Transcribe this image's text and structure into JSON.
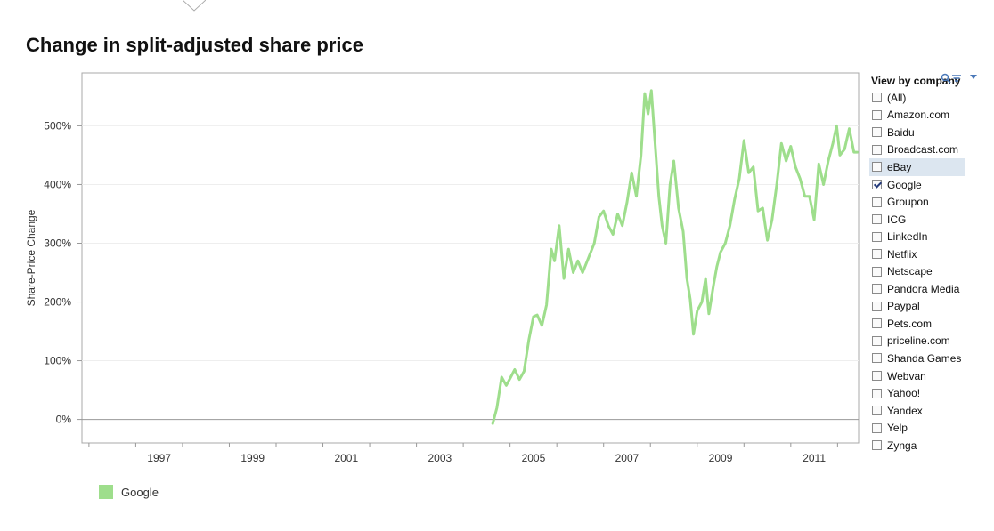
{
  "page": {
    "title": "Change in split-adjusted share price",
    "colors": {
      "series": "#9ede8c",
      "plot_border": "#a8a8a8",
      "gridline": "#eeeeee",
      "zero_line": "#999999",
      "accent": "#4a78b8"
    }
  },
  "filter": {
    "title": "View by company",
    "items": [
      {
        "label": "(All)",
        "checked": false
      },
      {
        "label": "Amazon.com",
        "checked": false
      },
      {
        "label": "Baidu",
        "checked": false
      },
      {
        "label": "Broadcast.com",
        "checked": false
      },
      {
        "label": "eBay",
        "checked": false
      },
      {
        "label": "Google",
        "checked": true
      },
      {
        "label": "Groupon",
        "checked": false
      },
      {
        "label": "ICG",
        "checked": false
      },
      {
        "label": "LinkedIn",
        "checked": false
      },
      {
        "label": "Netflix",
        "checked": false
      },
      {
        "label": "Netscape",
        "checked": false
      },
      {
        "label": "Pandora Media",
        "checked": false
      },
      {
        "label": "Paypal",
        "checked": false
      },
      {
        "label": "Pets.com",
        "checked": false
      },
      {
        "label": "priceline.com",
        "checked": false
      },
      {
        "label": "Shanda Games",
        "checked": false
      },
      {
        "label": "Webvan",
        "checked": false
      },
      {
        "label": "Yahoo!",
        "checked": false
      },
      {
        "label": "Yandex",
        "checked": false
      },
      {
        "label": "Yelp",
        "checked": false
      },
      {
        "label": "Zynga",
        "checked": false
      }
    ],
    "icons": [
      "search-icon",
      "filter-menu-icon",
      "dropdown-icon"
    ]
  },
  "chart_data": {
    "type": "line",
    "title": "Change in split-adjusted share price",
    "xlabel": "",
    "ylabel": "Share-Price Change",
    "xlim": [
      1995.85,
      2012.45
    ],
    "ylim": [
      -40,
      590
    ],
    "x_ticks": [
      "1997",
      "1999",
      "2001",
      "2003",
      "2005",
      "2007",
      "2009",
      "2011"
    ],
    "y_ticks": [
      "0%",
      "100%",
      "200%",
      "300%",
      "400%",
      "500%"
    ],
    "y_tick_values": [
      0,
      100,
      200,
      300,
      400,
      500
    ],
    "grid": true,
    "legend_position": "bottom-left",
    "series": [
      {
        "name": "Google",
        "color": "#9ede8c",
        "points": [
          [
            2004.63,
            -7
          ],
          [
            2004.72,
            20
          ],
          [
            2004.82,
            72
          ],
          [
            2004.92,
            58
          ],
          [
            2005.0,
            70
          ],
          [
            2005.1,
            85
          ],
          [
            2005.2,
            68
          ],
          [
            2005.3,
            82
          ],
          [
            2005.4,
            135
          ],
          [
            2005.5,
            175
          ],
          [
            2005.58,
            178
          ],
          [
            2005.68,
            160
          ],
          [
            2005.78,
            195
          ],
          [
            2005.88,
            290
          ],
          [
            2005.95,
            270
          ],
          [
            2006.05,
            330
          ],
          [
            2006.15,
            240
          ],
          [
            2006.25,
            290
          ],
          [
            2006.35,
            250
          ],
          [
            2006.45,
            270
          ],
          [
            2006.55,
            250
          ],
          [
            2006.7,
            280
          ],
          [
            2006.8,
            300
          ],
          [
            2006.9,
            345
          ],
          [
            2007.0,
            355
          ],
          [
            2007.1,
            330
          ],
          [
            2007.2,
            315
          ],
          [
            2007.3,
            350
          ],
          [
            2007.4,
            330
          ],
          [
            2007.5,
            370
          ],
          [
            2007.6,
            420
          ],
          [
            2007.7,
            380
          ],
          [
            2007.8,
            450
          ],
          [
            2007.88,
            555
          ],
          [
            2007.95,
            520
          ],
          [
            2008.02,
            560
          ],
          [
            2008.1,
            470
          ],
          [
            2008.18,
            380
          ],
          [
            2008.25,
            330
          ],
          [
            2008.33,
            300
          ],
          [
            2008.42,
            400
          ],
          [
            2008.5,
            440
          ],
          [
            2008.6,
            360
          ],
          [
            2008.7,
            320
          ],
          [
            2008.78,
            240
          ],
          [
            2008.85,
            205
          ],
          [
            2008.92,
            145
          ],
          [
            2009.0,
            185
          ],
          [
            2009.1,
            200
          ],
          [
            2009.18,
            240
          ],
          [
            2009.25,
            180
          ],
          [
            2009.35,
            230
          ],
          [
            2009.42,
            260
          ],
          [
            2009.5,
            285
          ],
          [
            2009.6,
            300
          ],
          [
            2009.7,
            330
          ],
          [
            2009.8,
            375
          ],
          [
            2009.9,
            410
          ],
          [
            2010.0,
            475
          ],
          [
            2010.1,
            420
          ],
          [
            2010.2,
            430
          ],
          [
            2010.3,
            355
          ],
          [
            2010.4,
            360
          ],
          [
            2010.5,
            305
          ],
          [
            2010.6,
            340
          ],
          [
            2010.7,
            400
          ],
          [
            2010.8,
            470
          ],
          [
            2010.9,
            440
          ],
          [
            2011.0,
            465
          ],
          [
            2011.1,
            430
          ],
          [
            2011.2,
            410
          ],
          [
            2011.3,
            380
          ],
          [
            2011.4,
            380
          ],
          [
            2011.5,
            340
          ],
          [
            2011.6,
            435
          ],
          [
            2011.7,
            400
          ],
          [
            2011.8,
            440
          ],
          [
            2011.9,
            470
          ],
          [
            2011.98,
            500
          ],
          [
            2012.05,
            450
          ],
          [
            2012.15,
            460
          ],
          [
            2012.25,
            495
          ],
          [
            2012.35,
            455
          ],
          [
            2012.42,
            455
          ]
        ]
      }
    ]
  }
}
